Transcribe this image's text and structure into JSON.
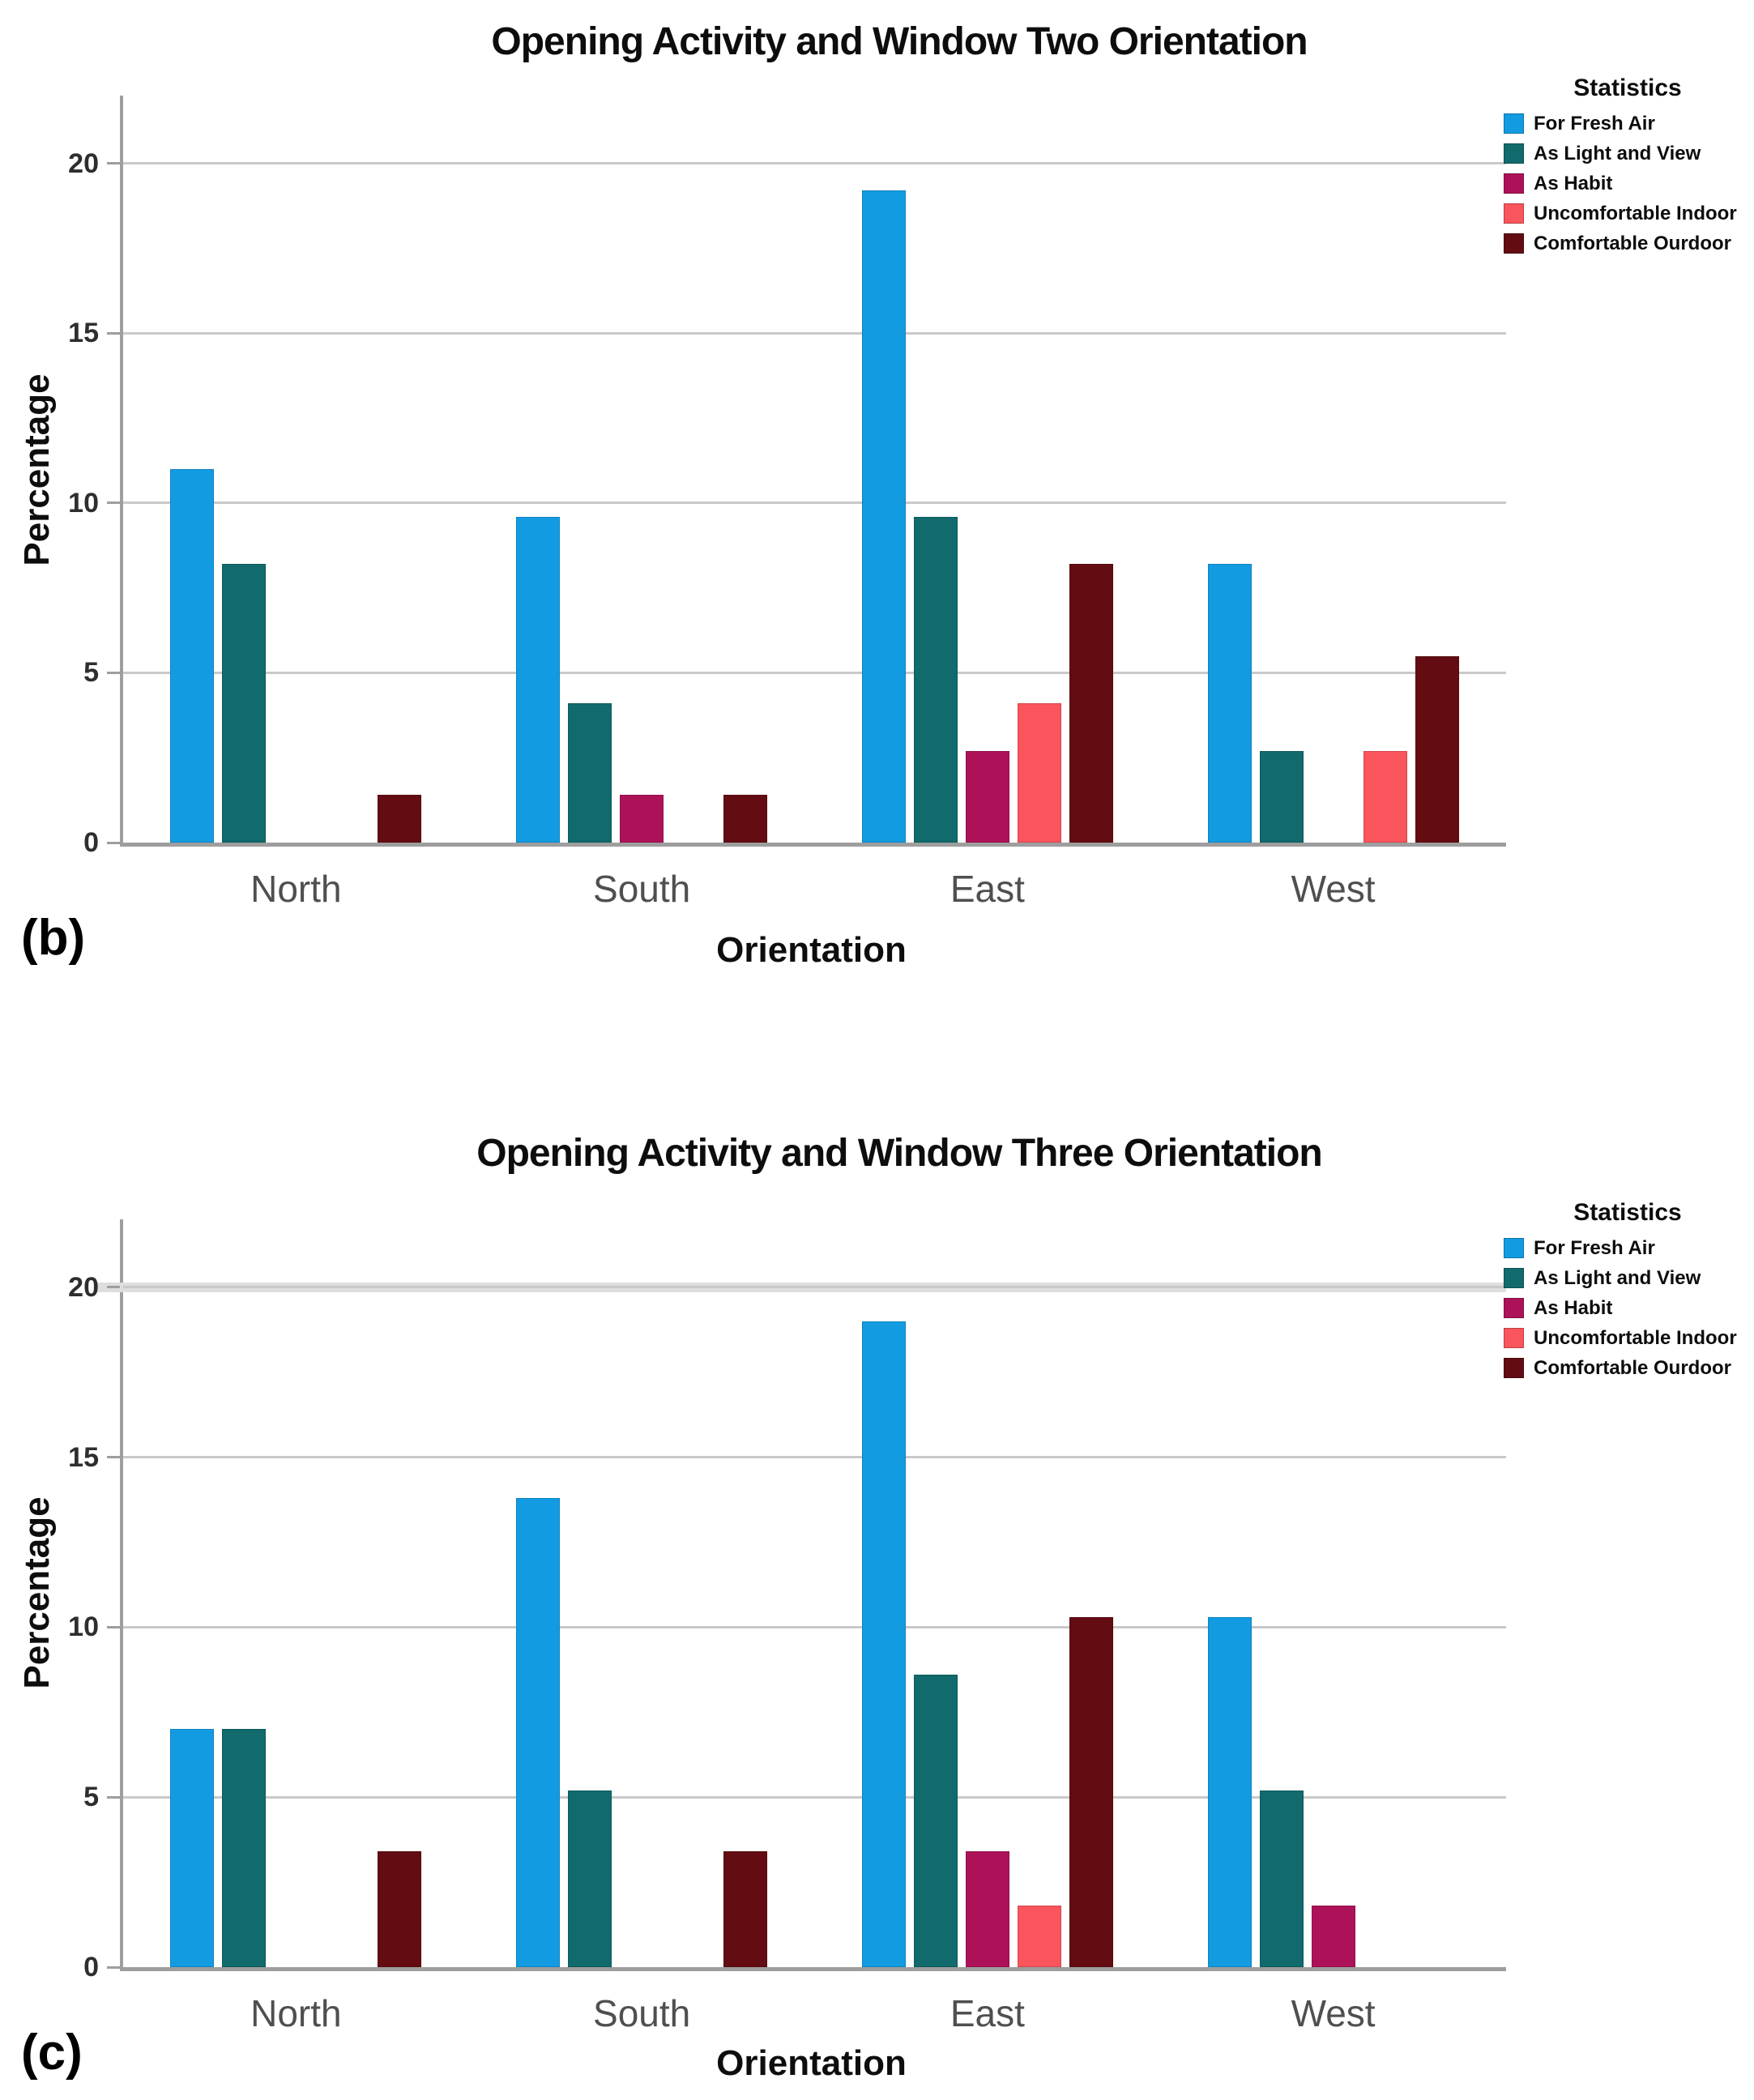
{
  "legend": {
    "title": "Statistics",
    "items": [
      {
        "label": "For Fresh Air",
        "color": "#129be1"
      },
      {
        "label": "As Light and View",
        "color": "#116a6b"
      },
      {
        "label": "As Habit",
        "color": "#ad1259"
      },
      {
        "label": "Uncomfortable Indoor",
        "color": "#fa545c"
      },
      {
        "label": "Comfortable Ourdoor",
        "color": "#630c11"
      }
    ]
  },
  "chart_data": [
    {
      "type": "bar",
      "panel": "(b)",
      "title": "Opening Activity and Window Two Orientation",
      "xlabel": "Orientation",
      "ylabel": "Percentage",
      "ylim": [
        0,
        22
      ],
      "yticks": [
        0,
        5,
        10,
        15,
        20
      ],
      "grid": "horizontal",
      "legend_title": "Statistics",
      "legend_position": "top-right",
      "categories": [
        "North",
        "South",
        "East",
        "West"
      ],
      "series": [
        {
          "name": "For Fresh Air",
          "color": "#129be1",
          "values": [
            11.0,
            9.6,
            19.2,
            8.2
          ]
        },
        {
          "name": "As Light and View",
          "color": "#116a6b",
          "values": [
            8.2,
            4.1,
            9.6,
            2.7
          ]
        },
        {
          "name": "As Habit",
          "color": "#ad1259",
          "values": [
            0,
            1.4,
            2.7,
            0
          ]
        },
        {
          "name": "Uncomfortable Indoor",
          "color": "#fa545c",
          "values": [
            0,
            0,
            4.1,
            2.7
          ]
        },
        {
          "name": "Comfortable Ourdoor",
          "color": "#630c11",
          "values": [
            1.4,
            1.4,
            8.2,
            5.5
          ]
        }
      ]
    },
    {
      "type": "bar",
      "panel": "(c)",
      "title": "Opening Activity and Window Three Orientation",
      "xlabel": "Orientation",
      "ylabel": "Percentage",
      "ylim": [
        0,
        22
      ],
      "yticks": [
        0,
        5,
        10,
        15,
        20
      ],
      "grid": "horizontal",
      "legend_title": "Statistics",
      "legend_position": "top-right",
      "categories": [
        "North",
        "South",
        "East",
        "West"
      ],
      "series": [
        {
          "name": "For Fresh Air",
          "color": "#129be1",
          "values": [
            7.0,
            13.8,
            19.0,
            10.3
          ]
        },
        {
          "name": "As Light and View",
          "color": "#116a6b",
          "values": [
            7.0,
            5.2,
            8.6,
            5.2
          ]
        },
        {
          "name": "As Habit",
          "color": "#ad1259",
          "values": [
            0,
            0,
            3.4,
            1.8
          ]
        },
        {
          "name": "Uncomfortable Indoor",
          "color": "#fa545c",
          "values": [
            0,
            0,
            1.8,
            0
          ]
        },
        {
          "name": "Comfortable Ourdoor",
          "color": "#630c11",
          "values": [
            3.4,
            3.4,
            10.3,
            0
          ]
        }
      ]
    }
  ]
}
